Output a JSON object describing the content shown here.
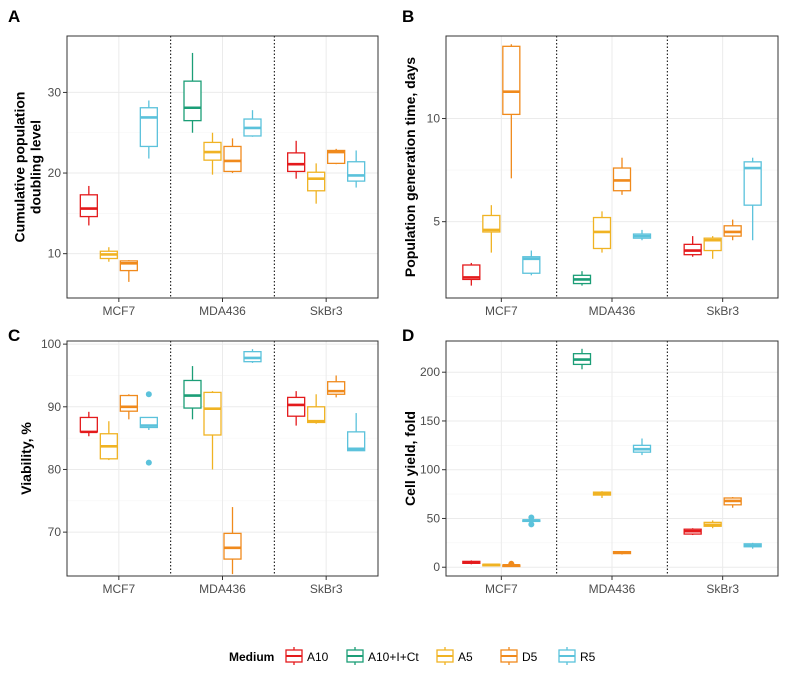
{
  "legend": {
    "title": "Medium",
    "items": [
      {
        "key": "A10",
        "label": "A10",
        "color": "#E41A1C"
      },
      {
        "key": "A10ICt",
        "label": "A10+I+Ct",
        "color": "#1B9E77"
      },
      {
        "key": "A5",
        "label": "A5",
        "color": "#F0B323"
      },
      {
        "key": "D5",
        "label": "D5",
        "color": "#F08A1C"
      },
      {
        "key": "R5",
        "label": "R5",
        "color": "#5BC2DB"
      }
    ]
  },
  "chart_data": [
    {
      "panel": "A",
      "type": "box",
      "ylabel": "Cumulative population doubling level",
      "categories": [
        "MCF7",
        "MDA436",
        "SkBr3"
      ],
      "ylim": [
        4.5,
        37
      ],
      "yticks": [
        10,
        20,
        30
      ],
      "groups": [
        {
          "category": "MCF7",
          "boxes": [
            {
              "medium": "A10",
              "min": 13.5,
              "q1": 14.6,
              "median": 15.6,
              "q3": 17.3,
              "max": 18.4,
              "outliers": []
            },
            {
              "medium": "A5",
              "min": 9.0,
              "q1": 9.4,
              "median": 9.9,
              "q3": 10.3,
              "max": 10.8,
              "outliers": []
            },
            {
              "medium": "D5",
              "min": 6.5,
              "q1": 7.9,
              "median": 8.8,
              "q3": 9.1,
              "max": 9.2,
              "outliers": []
            },
            {
              "medium": "R5",
              "min": 21.8,
              "q1": 23.3,
              "median": 26.9,
              "q3": 28.1,
              "max": 29.0,
              "outliers": []
            }
          ]
        },
        {
          "category": "MDA436",
          "boxes": [
            {
              "medium": "A10+I+Ct",
              "min": 25.0,
              "q1": 26.5,
              "median": 28.1,
              "q3": 31.4,
              "max": 34.9,
              "outliers": []
            },
            {
              "medium": "A5",
              "min": 19.8,
              "q1": 21.6,
              "median": 22.6,
              "q3": 23.8,
              "max": 25.0,
              "outliers": []
            },
            {
              "medium": "D5",
              "min": 20.0,
              "q1": 20.2,
              "median": 21.5,
              "q3": 23.3,
              "max": 24.3,
              "outliers": []
            },
            {
              "medium": "R5",
              "min": 24.5,
              "q1": 24.6,
              "median": 25.6,
              "q3": 26.7,
              "max": 27.8,
              "outliers": []
            }
          ]
        },
        {
          "category": "SkBr3",
          "boxes": [
            {
              "medium": "A10",
              "min": 19.3,
              "q1": 20.2,
              "median": 21.1,
              "q3": 22.5,
              "max": 24.0,
              "outliers": []
            },
            {
              "medium": "A5",
              "min": 16.2,
              "q1": 17.8,
              "median": 19.3,
              "q3": 20.1,
              "max": 21.2,
              "outliers": []
            },
            {
              "medium": "D5",
              "min": 21.1,
              "q1": 21.2,
              "median": 22.6,
              "q3": 22.8,
              "max": 23.0,
              "outliers": []
            },
            {
              "medium": "R5",
              "min": 18.2,
              "q1": 19.0,
              "median": 19.7,
              "q3": 21.4,
              "max": 22.8,
              "outliers": []
            }
          ]
        }
      ]
    },
    {
      "panel": "B",
      "type": "box",
      "ylabel": "Population generation time, days",
      "categories": [
        "MCF7",
        "MDA436",
        "SkBr3"
      ],
      "ylim": [
        1.3,
        14.0
      ],
      "yticks": [
        5,
        10
      ],
      "groups": [
        {
          "category": "MCF7",
          "boxes": [
            {
              "medium": "A10",
              "min": 1.9,
              "q1": 2.2,
              "median": 2.3,
              "q3": 2.9,
              "max": 3.0,
              "outliers": []
            },
            {
              "medium": "A5",
              "min": 3.5,
              "q1": 4.5,
              "median": 4.6,
              "q3": 5.3,
              "max": 5.8,
              "outliers": []
            },
            {
              "medium": "D5",
              "min": 7.1,
              "q1": 10.2,
              "median": 11.3,
              "q3": 13.5,
              "max": 13.6,
              "outliers": []
            },
            {
              "medium": "R5",
              "min": 2.4,
              "q1": 2.5,
              "median": 3.2,
              "q3": 3.3,
              "max": 3.6,
              "outliers": []
            }
          ]
        },
        {
          "category": "MDA436",
          "boxes": [
            {
              "medium": "A10+I+Ct",
              "min": 1.9,
              "q1": 2.0,
              "median": 2.2,
              "q3": 2.4,
              "max": 2.6,
              "outliers": []
            },
            {
              "medium": "A5",
              "min": 3.5,
              "q1": 3.7,
              "median": 4.5,
              "q3": 5.2,
              "max": 5.5,
              "outliers": []
            },
            {
              "medium": "D5",
              "min": 6.3,
              "q1": 6.5,
              "median": 7.0,
              "q3": 7.6,
              "max": 8.1,
              "outliers": []
            },
            {
              "medium": "R5",
              "min": 4.1,
              "q1": 4.2,
              "median": 4.3,
              "q3": 4.4,
              "max": 4.6,
              "outliers": []
            }
          ]
        },
        {
          "category": "SkBr3",
          "boxes": [
            {
              "medium": "A10",
              "min": 3.3,
              "q1": 3.4,
              "median": 3.6,
              "q3": 3.9,
              "max": 4.3,
              "outliers": []
            },
            {
              "medium": "A5",
              "min": 3.2,
              "q1": 3.6,
              "median": 4.1,
              "q3": 4.2,
              "max": 4.3,
              "outliers": []
            },
            {
              "medium": "D5",
              "min": 4.1,
              "q1": 4.3,
              "median": 4.5,
              "q3": 4.8,
              "max": 5.1,
              "outliers": []
            },
            {
              "medium": "R5",
              "min": 4.1,
              "q1": 5.8,
              "median": 7.6,
              "q3": 7.9,
              "max": 8.1,
              "outliers": []
            }
          ]
        }
      ]
    },
    {
      "panel": "C",
      "type": "box",
      "ylabel": "Viability, %",
      "categories": [
        "MCF7",
        "MDA436",
        "SkBr3"
      ],
      "ylim": [
        63,
        100.5
      ],
      "yticks": [
        70,
        80,
        90,
        100
      ],
      "groups": [
        {
          "category": "MCF7",
          "boxes": [
            {
              "medium": "A10",
              "min": 85.3,
              "q1": 86.0,
              "median": 86.0,
              "q3": 88.3,
              "max": 89.2,
              "outliers": []
            },
            {
              "medium": "A5",
              "min": 81.5,
              "q1": 81.7,
              "median": 83.7,
              "q3": 85.7,
              "max": 87.7,
              "outliers": []
            },
            {
              "medium": "D5",
              "min": 88.0,
              "q1": 89.3,
              "median": 90.0,
              "q3": 91.8,
              "max": 92.0,
              "outliers": []
            },
            {
              "medium": "R5",
              "min": 86.3,
              "q1": 86.7,
              "median": 87.0,
              "q3": 88.3,
              "max": 88.3,
              "outliers": [
                92.0,
                81.1
              ]
            }
          ]
        },
        {
          "category": "MDA436",
          "boxes": [
            {
              "medium": "A10+I+Ct",
              "min": 88.0,
              "q1": 89.8,
              "median": 91.8,
              "q3": 94.2,
              "max": 96.5,
              "outliers": []
            },
            {
              "medium": "A5",
              "min": 80.0,
              "q1": 85.5,
              "median": 89.7,
              "q3": 92.3,
              "max": 92.5,
              "outliers": []
            },
            {
              "medium": "D5",
              "min": 63.3,
              "q1": 65.7,
              "median": 67.5,
              "q3": 69.8,
              "max": 74.0,
              "outliers": []
            },
            {
              "medium": "R5",
              "min": 97.0,
              "q1": 97.2,
              "median": 97.8,
              "q3": 98.8,
              "max": 99.2,
              "outliers": []
            }
          ]
        },
        {
          "category": "SkBr3",
          "boxes": [
            {
              "medium": "A10",
              "min": 87.0,
              "q1": 88.5,
              "median": 90.3,
              "q3": 91.5,
              "max": 92.5,
              "outliers": []
            },
            {
              "medium": "A5",
              "min": 87.3,
              "q1": 87.5,
              "median": 87.7,
              "q3": 90.0,
              "max": 92.0,
              "outliers": []
            },
            {
              "medium": "D5",
              "min": 91.5,
              "q1": 92.0,
              "median": 92.5,
              "q3": 94.0,
              "max": 95.0,
              "outliers": []
            },
            {
              "medium": "R5",
              "min": 83.0,
              "q1": 83.0,
              "median": 83.3,
              "q3": 86.0,
              "max": 89.0,
              "outliers": []
            }
          ]
        }
      ]
    },
    {
      "panel": "D",
      "type": "box",
      "ylabel": "Cell yield, fold",
      "categories": [
        "MCF7",
        "MDA436",
        "SkBr3"
      ],
      "ylim": [
        -9,
        232
      ],
      "yticks": [
        0,
        50,
        100,
        150,
        200
      ],
      "groups": [
        {
          "category": "MCF7",
          "boxes": [
            {
              "medium": "A10",
              "min": 3.0,
              "q1": 4.0,
              "median": 5.0,
              "q3": 6.0,
              "max": 7.0,
              "outliers": []
            },
            {
              "medium": "A5",
              "min": 1.5,
              "q1": 2.0,
              "median": 2.5,
              "q3": 3.0,
              "max": 3.5,
              "outliers": []
            },
            {
              "medium": "D5",
              "min": 1.0,
              "q1": 1.5,
              "median": 2.0,
              "q3": 2.3,
              "max": 2.5,
              "outliers": [
                3.5
              ]
            },
            {
              "medium": "R5",
              "min": 47.0,
              "q1": 48.0,
              "median": 48.0,
              "q3": 48.5,
              "max": 49.0,
              "outliers": [
                51.0,
                44.0
              ]
            }
          ]
        },
        {
          "category": "MDA436",
          "boxes": [
            {
              "medium": "A10+I+Ct",
              "min": 203.0,
              "q1": 208.0,
              "median": 213.0,
              "q3": 219.0,
              "max": 224.0,
              "outliers": []
            },
            {
              "medium": "A5",
              "min": 71.0,
              "q1": 74.0,
              "median": 75.5,
              "q3": 77.0,
              "max": 78.0,
              "outliers": []
            },
            {
              "medium": "D5",
              "min": 13.0,
              "q1": 14.0,
              "median": 15.0,
              "q3": 16.0,
              "max": 16.5,
              "outliers": []
            },
            {
              "medium": "R5",
              "min": 115.0,
              "q1": 118.0,
              "median": 121.0,
              "q3": 125.0,
              "max": 132.0,
              "outliers": []
            }
          ]
        },
        {
          "category": "SkBr3",
          "boxes": [
            {
              "medium": "A10",
              "min": 33.0,
              "q1": 34.0,
              "median": 37.0,
              "q3": 39.0,
              "max": 40.0,
              "outliers": []
            },
            {
              "medium": "A5",
              "min": 40.0,
              "q1": 42.0,
              "median": 43.5,
              "q3": 46.0,
              "max": 48.0,
              "outliers": []
            },
            {
              "medium": "D5",
              "min": 61.0,
              "q1": 64.0,
              "median": 68.0,
              "q3": 71.0,
              "max": 72.0,
              "outliers": []
            },
            {
              "medium": "R5",
              "min": 19.0,
              "q1": 21.0,
              "median": 22.0,
              "q3": 24.0,
              "max": 25.0,
              "outliers": []
            }
          ]
        }
      ]
    }
  ]
}
